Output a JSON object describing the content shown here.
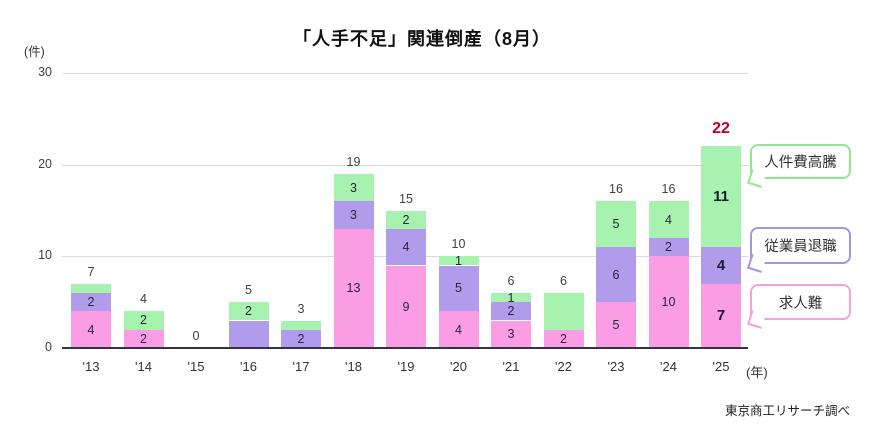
{
  "title": "「人手不足」関連倒産（8月）",
  "source": "東京商工リサーチ調べ",
  "chart_data": {
    "type": "stacked-bar",
    "title": "「人手不足」関連倒産（8月）",
    "y_axis_unit": "(件)",
    "x_axis_unit": "(年)",
    "ylim": [
      0,
      30
    ],
    "yticks": [
      0,
      10,
      20,
      30
    ],
    "grid": true,
    "legend_position": "right-callouts",
    "categories": [
      "'13",
      "'14",
      "'15",
      "'16",
      "'17",
      "'18",
      "'19",
      "'20",
      "'21",
      "'22",
      "'23",
      "'24",
      "'25"
    ],
    "series": [
      {
        "name": "求人難",
        "color": "#FB9DE5",
        "values": [
          4,
          2,
          0,
          0,
          0,
          13,
          9,
          4,
          3,
          2,
          5,
          10,
          7
        ],
        "labels": [
          "4",
          "2",
          "",
          "",
          "",
          "13",
          "9",
          "4",
          "3",
          "2",
          "5",
          "10",
          "7"
        ]
      },
      {
        "name": "従業員退職",
        "color": "#B19CEC",
        "values": [
          2,
          0,
          0,
          3,
          2,
          3,
          4,
          5,
          2,
          0,
          6,
          2,
          4
        ],
        "labels": [
          "2",
          "",
          "",
          "",
          "2",
          "3",
          "4",
          "5",
          "2",
          "",
          "6",
          "2",
          "4"
        ]
      },
      {
        "name": "人件費高騰",
        "color": "#A6F2AE",
        "values": [
          1,
          2,
          0,
          2,
          1,
          3,
          2,
          1,
          1,
          4,
          5,
          4,
          11
        ],
        "labels": [
          "",
          "2",
          "",
          "2",
          "",
          "3",
          "2",
          "1",
          "1",
          "",
          "5",
          "4",
          "11"
        ]
      }
    ],
    "totals": [
      "7",
      "4",
      "0",
      "5",
      "3",
      "19",
      "15",
      "10",
      "6",
      "6",
      "16",
      "16",
      "22"
    ],
    "highlight_index": 12,
    "highlight_color": "#C00020",
    "legend": [
      {
        "label": "人件費高騰",
        "color": "#92E692"
      },
      {
        "label": "従業員退職",
        "color": "#A495E2"
      },
      {
        "label": "求人難",
        "color": "#F0A3DC"
      }
    ]
  }
}
